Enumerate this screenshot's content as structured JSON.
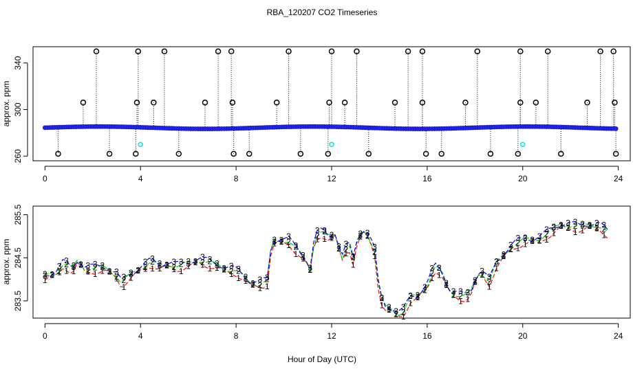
{
  "title": "RBA_120207  CO2 Timeseries",
  "xlabel": "Hour of Day (UTC)",
  "colors": {
    "ring": "#000000",
    "point_fill": "#2222ff",
    "cyan": "#00e5e5",
    "series1": "#ff0000",
    "series2": "#00cc00",
    "series3": "#0000ff"
  },
  "chart_data": [
    {
      "type": "scatter",
      "panel": "top",
      "ylabel": "approx. ppm",
      "xlim": [
        -0.5,
        24.5
      ],
      "ylim": [
        256,
        354
      ],
      "xticks": [
        0,
        4,
        8,
        12,
        16,
        20,
        24
      ],
      "yticks": [
        260,
        300,
        340
      ],
      "baseline": {
        "x_start": 0.0,
        "x_end": 23.9,
        "step": 0.1,
        "value_range": [
          283.4,
          285.4
        ]
      },
      "spikes_high": {
        "value": 350,
        "x": [
          2.15,
          3.9,
          5.0,
          7.25,
          7.8,
          10.2,
          12.0,
          13.05,
          15.2,
          15.8,
          18.1,
          19.9,
          21.05,
          23.25,
          23.8
        ]
      },
      "spikes_mid": {
        "value": 306,
        "x": [
          1.6,
          3.85,
          4.55,
          6.7,
          7.85,
          9.7,
          11.9,
          12.55,
          14.65,
          15.8,
          17.6,
          19.9,
          20.55,
          22.7,
          23.85
        ]
      },
      "spikes_low": {
        "value": 262,
        "x": [
          0.55,
          2.7,
          3.8,
          5.6,
          7.9,
          8.55,
          10.7,
          11.85,
          13.55,
          15.95,
          16.6,
          18.65,
          19.8,
          21.6,
          23.9
        ]
      },
      "cyan_points": {
        "value": 270,
        "x": [
          4.0,
          12.0,
          20.0
        ]
      }
    },
    {
      "type": "line",
      "panel": "bottom",
      "ylabel": "approx. ppm",
      "xlim": [
        -0.5,
        24.5
      ],
      "ylim": [
        283.1,
        285.7
      ],
      "xticks": [
        0,
        4,
        8,
        12,
        16,
        20,
        24
      ],
      "yticks": [
        283.5,
        284.5,
        285.5
      ],
      "series": [
        {
          "name": "1",
          "offset": -0.12
        },
        {
          "name": "2",
          "offset": -0.04
        },
        {
          "name": "3",
          "offset": 0.0
        }
      ],
      "base_curve": [
        [
          0.0,
          284.1
        ],
        [
          0.5,
          284.2
        ],
        [
          0.8,
          284.45
        ],
        [
          1.0,
          284.3
        ],
        [
          1.2,
          284.3
        ],
        [
          1.4,
          284.5
        ],
        [
          1.6,
          284.3
        ],
        [
          2.0,
          284.3
        ],
        [
          2.5,
          284.3
        ],
        [
          3.0,
          284.15
        ],
        [
          3.2,
          283.95
        ],
        [
          3.5,
          284.1
        ],
        [
          4.0,
          284.3
        ],
        [
          4.4,
          284.45
        ],
        [
          4.8,
          284.35
        ],
        [
          5.2,
          284.4
        ],
        [
          5.6,
          284.35
        ],
        [
          6.0,
          284.4
        ],
        [
          6.5,
          284.5
        ],
        [
          7.0,
          284.4
        ],
        [
          7.5,
          284.3
        ],
        [
          8.0,
          284.25
        ],
        [
          8.3,
          284.1
        ],
        [
          8.6,
          283.95
        ],
        [
          9.0,
          283.95
        ],
        [
          9.3,
          284.0
        ],
        [
          9.5,
          284.9
        ],
        [
          9.8,
          284.95
        ],
        [
          10.2,
          284.95
        ],
        [
          10.5,
          284.75
        ],
        [
          10.9,
          284.5
        ],
        [
          11.1,
          284.3
        ],
        [
          11.3,
          285.05
        ],
        [
          11.6,
          285.15
        ],
        [
          11.9,
          285.0
        ],
        [
          12.2,
          285.1
        ],
        [
          12.4,
          284.5
        ],
        [
          12.7,
          284.9
        ],
        [
          12.9,
          284.5
        ],
        [
          13.1,
          285.0
        ],
        [
          13.4,
          285.2
        ],
        [
          13.6,
          285.0
        ],
        [
          13.8,
          284.7
        ],
        [
          14.0,
          283.7
        ],
        [
          14.2,
          283.4
        ],
        [
          14.5,
          283.35
        ],
        [
          14.8,
          283.25
        ],
        [
          15.0,
          283.3
        ],
        [
          15.3,
          283.6
        ],
        [
          15.6,
          283.65
        ],
        [
          16.0,
          283.9
        ],
        [
          16.3,
          284.35
        ],
        [
          16.6,
          284.2
        ],
        [
          16.9,
          283.8
        ],
        [
          17.2,
          283.7
        ],
        [
          17.5,
          283.65
        ],
        [
          17.8,
          283.7
        ],
        [
          18.1,
          284.15
        ],
        [
          18.3,
          284.2
        ],
        [
          18.6,
          284.0
        ],
        [
          18.9,
          284.4
        ],
        [
          19.2,
          284.6
        ],
        [
          19.5,
          284.8
        ],
        [
          19.8,
          284.9
        ],
        [
          20.1,
          284.95
        ],
        [
          20.4,
          284.95
        ],
        [
          20.7,
          285.0
        ],
        [
          21.0,
          285.1
        ],
        [
          21.3,
          285.2
        ],
        [
          21.6,
          285.3
        ],
        [
          22.0,
          285.3
        ],
        [
          22.4,
          285.25
        ],
        [
          22.8,
          285.3
        ],
        [
          23.2,
          285.3
        ],
        [
          23.6,
          285.1
        ]
      ]
    }
  ]
}
